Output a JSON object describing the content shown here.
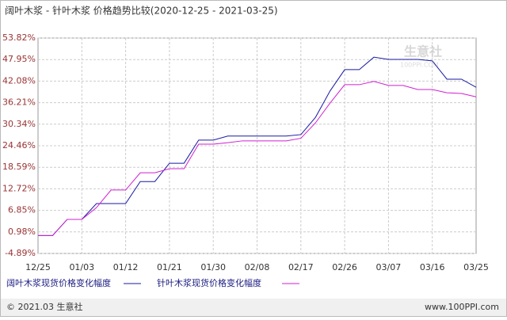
{
  "chart_data": {
    "type": "line",
    "title": "阔叶木浆 - 针叶木浆 价格趋势比较(2020-12-25 - 2021-03-25)",
    "watermark": "生意社",
    "watermark_url": "100PPI.COM",
    "categories": [
      "12/25",
      null,
      null,
      "01/03",
      null,
      null,
      "01/12",
      null,
      null,
      "01/21",
      null,
      null,
      "01/30",
      null,
      null,
      "02/08",
      null,
      null,
      "02/17",
      null,
      null,
      "02/26",
      null,
      null,
      "03/07",
      null,
      null,
      "03/16",
      null,
      null,
      "03/25"
    ],
    "series": [
      {
        "name": "阔叶木浆现货价格变化幅度",
        "color": "#1a1aa6",
        "values": [
          0,
          0,
          4.4,
          4.4,
          8.7,
          8.7,
          8.7,
          14.7,
          14.7,
          19.7,
          19.7,
          26.0,
          26.0,
          27.1,
          27.1,
          27.1,
          27.1,
          27.1,
          27.5,
          32.2,
          39.4,
          45.2,
          45.2,
          48.6,
          48.0,
          48.0,
          48.0,
          47.6,
          42.6,
          42.6,
          40.4
        ]
      },
      {
        "name": "针叶木浆现货价格变化幅度",
        "color": "#d020d0",
        "values": [
          0,
          0,
          4.4,
          4.4,
          7.6,
          12.4,
          12.4,
          17.1,
          17.1,
          18.2,
          18.2,
          24.9,
          24.9,
          25.3,
          25.8,
          25.8,
          25.8,
          25.8,
          26.5,
          30.7,
          36.1,
          41.1,
          41.1,
          42.0,
          40.9,
          40.9,
          39.8,
          39.8,
          38.9,
          38.7,
          37.8
        ]
      }
    ],
    "ylim": [
      -4.89,
      53.82
    ],
    "yticks": [
      {
        "value": 53.82,
        "label": "53.82%"
      },
      {
        "value": 47.95,
        "label": "47.95%"
      },
      {
        "value": 42.08,
        "label": "42.08%"
      },
      {
        "value": 36.21,
        "label": "36.21%"
      },
      {
        "value": 30.34,
        "label": "30.34%"
      },
      {
        "value": 24.46,
        "label": "24.46%"
      },
      {
        "value": 18.59,
        "label": "18.59%"
      },
      {
        "value": 12.72,
        "label": "12.72%"
      },
      {
        "value": 6.85,
        "label": "6.85%"
      },
      {
        "value": 0.98,
        "label": "0.98%"
      },
      {
        "value": -4.89,
        "label": "-4.89%"
      }
    ],
    "grid": true
  },
  "footer": {
    "left": "© 2021.03 生意社",
    "right": "www.100PPI.com"
  }
}
